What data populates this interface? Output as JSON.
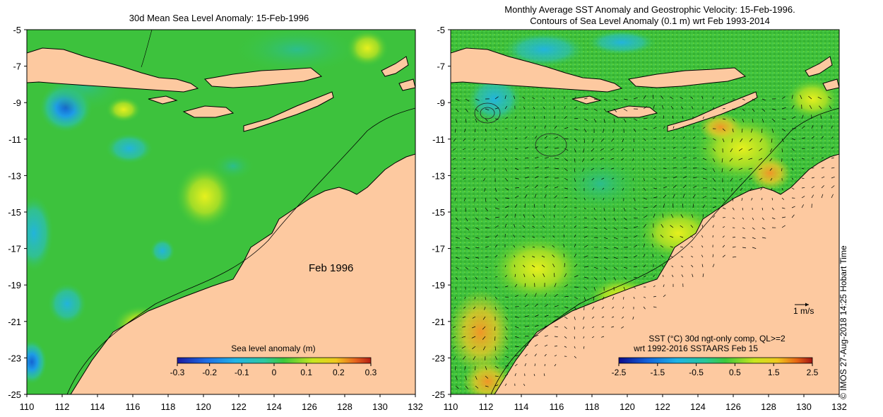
{
  "left_panel": {
    "title": "30d Mean Sea Level Anomaly: 15-Feb-1996",
    "annotation": "Feb 1996",
    "colorbar": {
      "title": "Sea level anomaly (m)",
      "ticks": [
        "-0.3",
        "-0.2",
        "-0.1",
        "0",
        "0.1",
        "0.2",
        "0.3"
      ]
    }
  },
  "right_panel": {
    "title_line1": "Monthly Average SST Anomaly  and Geostrophic Velocity: 15-Feb-1996.",
    "title_line2": "Contours of Sea Level Anomaly (0.1 m) wrt Feb 1993-2014",
    "scale_arrow_label": "1 m/s",
    "colorbar": {
      "title_line1": "SST (°C) 30d ngt-only comp, QL>=2",
      "title_line2": "wrt 1992-2016 SSTAARS Feb 15",
      "ticks": [
        "-2.5",
        "-1.5",
        "-0.5",
        "0.5",
        "1.5",
        "2.5"
      ]
    }
  },
  "axes": {
    "x_ticks": [
      "110",
      "112",
      "114",
      "116",
      "118",
      "120",
      "122",
      "124",
      "126",
      "128",
      "130",
      "132"
    ],
    "y_ticks": [
      "-5",
      "-7",
      "-9",
      "-11",
      "-13",
      "-15",
      "-17",
      "-19",
      "-21",
      "-23",
      "-25"
    ],
    "lon_range": [
      110,
      132
    ],
    "lat_range": [
      -25,
      -5
    ]
  },
  "footer_note": "© IMOS 27-Aug-2018 14:25 Hobart Time",
  "colors": {
    "land": "#fdc9a0",
    "ocean_base_left": "#3dc23d",
    "ocean_base_right": "#3fbd3a"
  }
}
